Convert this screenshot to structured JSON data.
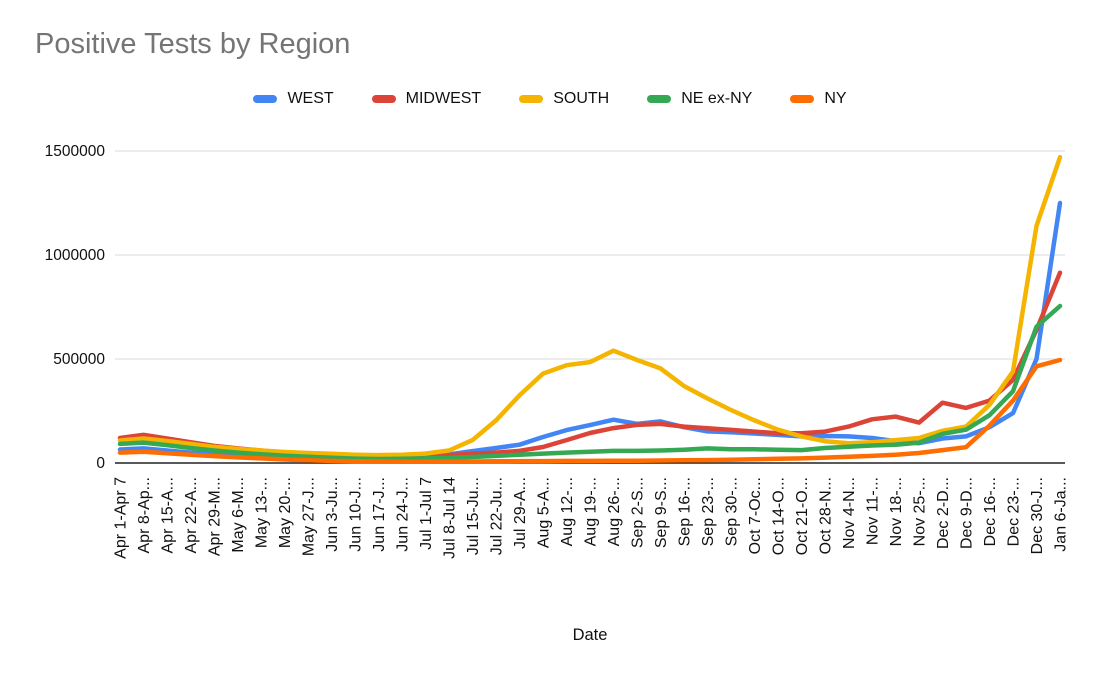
{
  "chart": {
    "title": "Positive Tests by Region",
    "title_color": "#757575",
    "background": "#ffffff",
    "axis_title": "Date",
    "y_tick_labels": [
      "0",
      "500000",
      "1000000",
      "1500000"
    ]
  },
  "chart_data": {
    "type": "line",
    "title": "Positive Tests by Region",
    "xlabel": "Date",
    "ylabel": "",
    "ylim": [
      0,
      1500000
    ],
    "y_tick_values": [
      0,
      500000,
      1000000,
      1500000
    ],
    "grid": "horizontal",
    "legend_position": "top",
    "categories": [
      "Apr 1-Apr 7",
      "Apr 8-Ap...",
      "Apr 15-A...",
      "Apr 22-A...",
      "Apr 29-M...",
      "May 6-M...",
      "May 13-...",
      "May 20-...",
      "May 27-J...",
      "Jun 3-Ju...",
      "Jun 10-J...",
      "Jun 17-J...",
      "Jun 24-J...",
      "Jul 1-Jul 7",
      "Jul 8-Jul 14",
      "Jul 15-Ju...",
      "Jul 22-Ju...",
      "Jul 29-A...",
      "Aug 5-A...",
      "Aug 12-...",
      "Aug 19-...",
      "Aug 26-...",
      "Sep 2-S...",
      "Sep 9-S...",
      "Sep 16-...",
      "Sep 23-...",
      "Sep 30-...",
      "Oct 7-Oc...",
      "Oct 14-O...",
      "Oct 21-O...",
      "Oct 28-N...",
      "Nov 4-N...",
      "Nov 11-...",
      "Nov 18-...",
      "Nov 25-...",
      "Dec 2-D...",
      "Dec 9-D...",
      "Dec 16-...",
      "Dec 23-...",
      "Dec 30-J...",
      "Jan 6-Ja..."
    ],
    "series": [
      {
        "name": "WEST",
        "color": "#4285F4",
        "values": [
          65000,
          70000,
          60000,
          50000,
          43000,
          38000,
          34000,
          30000,
          26000,
          22000,
          19000,
          18000,
          22000,
          30000,
          42000,
          57000,
          72000,
          88000,
          125000,
          158000,
          182000,
          208000,
          188000,
          200000,
          172000,
          152000,
          148000,
          142000,
          135000,
          128000,
          130000,
          128000,
          120000,
          105000,
          95000,
          118000,
          128000,
          172000,
          240000,
          500000,
          1250000
        ]
      },
      {
        "name": "MIDWEST",
        "color": "#DB4437",
        "values": [
          120000,
          135000,
          118000,
          100000,
          82000,
          70000,
          60000,
          50000,
          44000,
          38000,
          33000,
          30000,
          32000,
          33000,
          38000,
          44000,
          50000,
          58000,
          77000,
          110000,
          144000,
          168000,
          183000,
          188000,
          175000,
          167000,
          159000,
          151000,
          143000,
          143000,
          151000,
          175000,
          210000,
          223000,
          194000,
          290000,
          265000,
          300000,
          400000,
          640000,
          915000
        ]
      },
      {
        "name": "SOUTH",
        "color": "#F4B400",
        "values": [
          108000,
          118000,
          106000,
          92000,
          78000,
          68000,
          60000,
          53000,
          48000,
          44000,
          40000,
          38000,
          40000,
          45000,
          60000,
          110000,
          205000,
          325000,
          430000,
          470000,
          485000,
          540000,
          495000,
          455000,
          370000,
          310000,
          255000,
          205000,
          160000,
          128000,
          105000,
          95000,
          100000,
          110000,
          120000,
          155000,
          175000,
          280000,
          440000,
          1140000,
          1470000
        ]
      },
      {
        "name": "NE ex-NY",
        "color": "#34A853",
        "values": [
          92000,
          98000,
          86000,
          72000,
          60000,
          50000,
          42000,
          35000,
          30000,
          25000,
          21000,
          19000,
          20000,
          22000,
          25000,
          29000,
          34000,
          40000,
          45000,
          50000,
          54000,
          58000,
          58000,
          60000,
          64000,
          70000,
          66000,
          66000,
          64000,
          62000,
          72000,
          78000,
          84000,
          88000,
          98000,
          140000,
          160000,
          230000,
          345000,
          655000,
          755000
        ]
      },
      {
        "name": "NY",
        "color": "#FF6D00",
        "values": [
          50000,
          54000,
          47000,
          40000,
          33000,
          27000,
          22000,
          17000,
          13000,
          10000,
          8000,
          7000,
          6000,
          6000,
          6000,
          7000,
          8000,
          9000,
          9000,
          10000,
          10000,
          11000,
          11000,
          12000,
          13000,
          14000,
          16000,
          18000,
          20000,
          22000,
          26000,
          30000,
          34000,
          40000,
          48000,
          62000,
          76000,
          180000,
          300000,
          465000,
          495000
        ]
      }
    ]
  }
}
